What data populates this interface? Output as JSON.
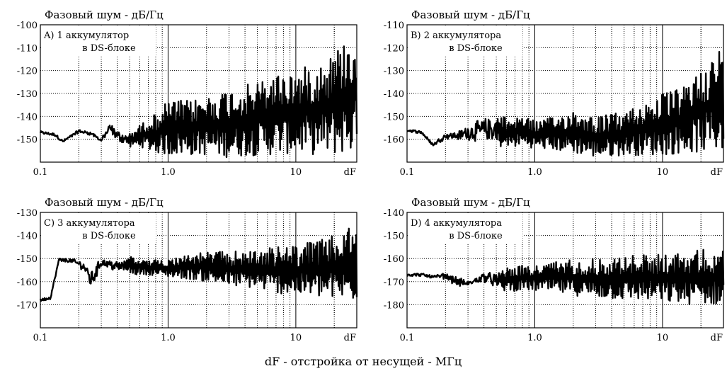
{
  "figure": {
    "xlabel": "dF - отстройка от несущей - МГц"
  },
  "chart_data": [
    {
      "type": "line",
      "title": "Фазовый шум - дБ/Гц",
      "annotation": [
        "A) 1 аккумулятор",
        "в DS-блоке"
      ],
      "x_scale": "log",
      "xlim": [
        0.1,
        30
      ],
      "x_ticks": [
        {
          "v": 0.1,
          "label": "0.1"
        },
        {
          "v": 1,
          "label": "1.0"
        },
        {
          "v": 10,
          "label": "10"
        }
      ],
      "x_end_label": "dF",
      "ylim": [
        -160,
        -100
      ],
      "y_ticks": [
        -100,
        -110,
        -120,
        -130,
        -140,
        -150
      ],
      "grid": true,
      "envelope": {
        "x": [
          0.1,
          0.13,
          0.15,
          0.2,
          0.25,
          0.3,
          0.35,
          0.4,
          0.5,
          0.6,
          0.7,
          0.8,
          1.0,
          1.5,
          2,
          3,
          5,
          7,
          10,
          15,
          20,
          25,
          30
        ],
        "upper": [
          -147,
          -148,
          -151,
          -146,
          -147,
          -150,
          -142,
          -145,
          -147,
          -144,
          -140,
          -139,
          -133,
          -133,
          -131,
          -128,
          -125,
          -121,
          -120,
          -116,
          -111,
          -106,
          -101
        ],
        "lower": [
          -147,
          -148,
          -151,
          -147,
          -148,
          -151,
          -148,
          -152,
          -154,
          -153,
          -155,
          -156,
          -157,
          -157,
          -157,
          -158,
          -157,
          -157,
          -156,
          -157,
          -157,
          -156,
          -157
        ]
      }
    },
    {
      "type": "line",
      "title": "Фазовый шум - дБ/Гц",
      "annotation": [
        "B) 2 аккумулятора",
        "в DS-блоке"
      ],
      "x_scale": "log",
      "xlim": [
        0.1,
        30
      ],
      "x_ticks": [
        {
          "v": 0.1,
          "label": "0.1"
        },
        {
          "v": 1,
          "label": "1.0"
        },
        {
          "v": 10,
          "label": "10"
        }
      ],
      "x_end_label": "dF",
      "ylim": [
        -170,
        -110
      ],
      "y_ticks": [
        -110,
        -120,
        -130,
        -140,
        -150,
        -160
      ],
      "grid": true,
      "envelope": {
        "x": [
          0.1,
          0.13,
          0.16,
          0.2,
          0.25,
          0.3,
          0.4,
          0.5,
          0.6,
          0.8,
          1.0,
          1.5,
          2,
          3,
          5,
          7,
          10,
          15,
          20,
          25,
          30
        ],
        "upper": [
          -156,
          -157,
          -162,
          -157,
          -156,
          -152,
          -148,
          -148,
          -151,
          -149,
          -152,
          -150,
          -147,
          -150,
          -148,
          -144,
          -140,
          -137,
          -128,
          -124,
          -117
        ],
        "lower": [
          -156,
          -157,
          -163,
          -160,
          -161,
          -162,
          -164,
          -163,
          -164,
          -163,
          -164,
          -165,
          -166,
          -168,
          -167,
          -167,
          -167,
          -166,
          -166,
          -165,
          -166
        ]
      }
    },
    {
      "type": "line",
      "title": "Фазовый шум - дБ/Гц",
      "annotation": [
        "C) 3 аккумулятора",
        "в DS-блоке"
      ],
      "x_scale": "log",
      "xlim": [
        0.1,
        30
      ],
      "x_ticks": [
        {
          "v": 0.1,
          "label": "0.1"
        },
        {
          "v": 1,
          "label": "1.0"
        },
        {
          "v": 10,
          "label": "10"
        }
      ],
      "x_end_label": "dF",
      "ylim": [
        -180,
        -130
      ],
      "y_ticks": [
        -130,
        -140,
        -150,
        -160,
        -170
      ],
      "grid": true,
      "envelope": {
        "x": [
          0.1,
          0.12,
          0.14,
          0.18,
          0.22,
          0.25,
          0.3,
          0.4,
          0.5,
          0.7,
          1.0,
          1.5,
          2,
          3,
          5,
          7,
          10,
          15,
          20,
          25,
          30
        ],
        "upper": [
          -168,
          -167,
          -150,
          -150,
          -151,
          -153,
          -149,
          -150,
          -149,
          -151,
          -150,
          -148,
          -147,
          -147,
          -146,
          -145,
          -144,
          -142,
          -140,
          -137,
          -136
        ],
        "lower": [
          -168,
          -167,
          -151,
          -152,
          -156,
          -166,
          -154,
          -157,
          -157,
          -157,
          -158,
          -159,
          -160,
          -162,
          -163,
          -165,
          -166,
          -167,
          -168,
          -169,
          -168
        ]
      }
    },
    {
      "type": "line",
      "title": "Фазовый шум - дБ/Гц",
      "annotation": [
        "D) 4 аккумулятора",
        "в DS-блоке"
      ],
      "x_scale": "log",
      "xlim": [
        0.1,
        30
      ],
      "x_ticks": [
        {
          "v": 0.1,
          "label": "0.1"
        },
        {
          "v": 1,
          "label": "1.0"
        },
        {
          "v": 10,
          "label": "10"
        }
      ],
      "x_end_label": "dF",
      "ylim": [
        -190,
        -140
      ],
      "y_ticks": [
        -140,
        -150,
        -160,
        -170,
        -180
      ],
      "grid": true,
      "envelope": {
        "x": [
          0.1,
          0.13,
          0.16,
          0.2,
          0.25,
          0.3,
          0.4,
          0.5,
          0.7,
          1.0,
          1.5,
          2,
          3,
          5,
          7,
          10,
          15,
          20,
          25,
          30
        ],
        "upper": [
          -167,
          -167,
          -168,
          -166,
          -167,
          -170,
          -165,
          -165,
          -163,
          -163,
          -161,
          -160,
          -160,
          -159,
          -158,
          -158,
          -157,
          -156,
          -156,
          -155
        ],
        "lower": [
          -167,
          -167,
          -168,
          -169,
          -173,
          -172,
          -171,
          -174,
          -174,
          -174,
          -175,
          -176,
          -177,
          -178,
          -178,
          -179,
          -180,
          -180,
          -180,
          -180
        ]
      }
    }
  ]
}
